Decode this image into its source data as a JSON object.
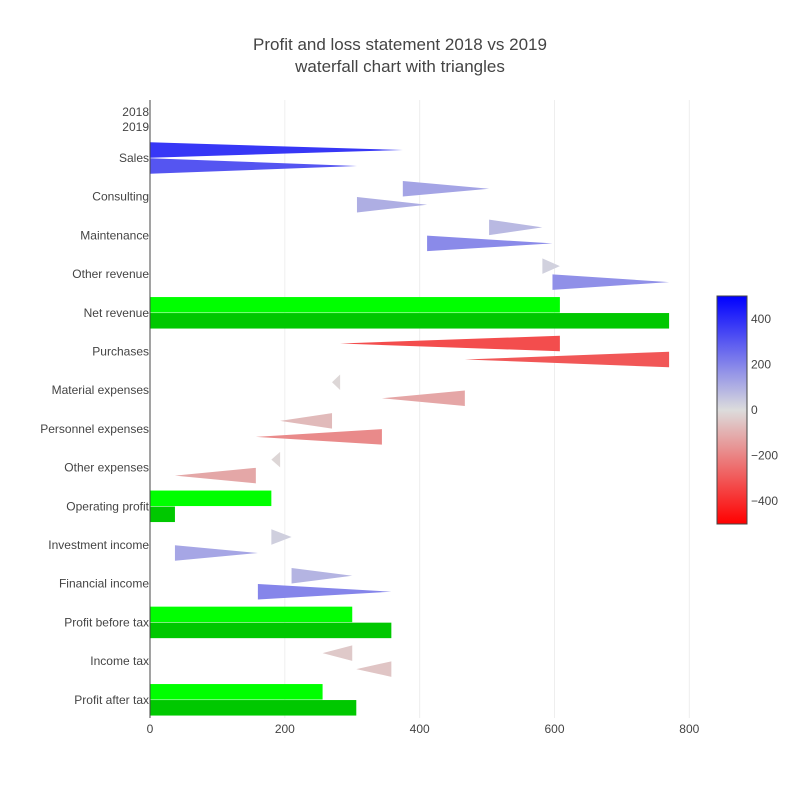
{
  "chart_data": {
    "type": "bar",
    "title_lines": [
      "Profit and loss statement 2018 vs 2019",
      "waterfall chart with triangles"
    ],
    "orientation": "horizontal",
    "x_ticks": [
      0,
      200,
      400,
      600,
      800
    ],
    "x_range": [
      0,
      890
    ],
    "top_labels": [
      "2018",
      "2019"
    ],
    "categories": [
      "Sales",
      "Consulting",
      "Maintenance",
      "Other revenue",
      "Net revenue",
      "Purchases",
      "Material expenses",
      "Personnel expenses",
      "Other expenses",
      "Operating profit",
      "Investment income",
      "Financial income",
      "Profit before tax",
      "Income tax",
      "Profit after tax"
    ],
    "series": [
      {
        "name": "2018",
        "items": [
          {
            "kind": "delta",
            "start": 0,
            "end": 375
          },
          {
            "kind": "delta",
            "start": 375,
            "end": 503
          },
          {
            "kind": "delta",
            "start": 503,
            "end": 582
          },
          {
            "kind": "delta",
            "start": 582,
            "end": 608
          },
          {
            "kind": "total",
            "value": 608
          },
          {
            "kind": "delta",
            "start": 608,
            "end": 282
          },
          {
            "kind": "delta",
            "start": 282,
            "end": 270
          },
          {
            "kind": "delta",
            "start": 270,
            "end": 193
          },
          {
            "kind": "delta",
            "start": 193,
            "end": 180
          },
          {
            "kind": "total",
            "value": 180
          },
          {
            "kind": "delta",
            "start": 180,
            "end": 210
          },
          {
            "kind": "delta",
            "start": 210,
            "end": 300
          },
          {
            "kind": "total",
            "value": 300
          },
          {
            "kind": "delta",
            "start": 300,
            "end": 256
          },
          {
            "kind": "total",
            "value": 256
          }
        ]
      },
      {
        "name": "2019",
        "items": [
          {
            "kind": "delta",
            "start": 0,
            "end": 307
          },
          {
            "kind": "delta",
            "start": 307,
            "end": 411
          },
          {
            "kind": "delta",
            "start": 411,
            "end": 597
          },
          {
            "kind": "delta",
            "start": 597,
            "end": 770
          },
          {
            "kind": "total",
            "value": 770
          },
          {
            "kind": "delta",
            "start": 770,
            "end": 467
          },
          {
            "kind": "delta",
            "start": 467,
            "end": 344
          },
          {
            "kind": "delta",
            "start": 344,
            "end": 157
          },
          {
            "kind": "delta",
            "start": 157,
            "end": 37
          },
          {
            "kind": "total",
            "value": 37
          },
          {
            "kind": "delta",
            "start": 37,
            "end": 160
          },
          {
            "kind": "delta",
            "start": 160,
            "end": 358
          },
          {
            "kind": "total",
            "value": 358
          },
          {
            "kind": "delta",
            "start": 358,
            "end": 306
          },
          {
            "kind": "total",
            "value": 306
          }
        ]
      }
    ],
    "total_colors": {
      "2018": "#00ff00",
      "2019": "#00c800"
    },
    "colorscale": {
      "min": -500,
      "max": 500,
      "stops": [
        [
          0,
          "#ff0000"
        ],
        [
          0.5,
          "#dcdcdc"
        ],
        [
          1,
          "#0000ff"
        ]
      ],
      "ticks": [
        400,
        200,
        0,
        -200,
        -400
      ],
      "tick_labels": [
        "400",
        "200",
        "0",
        "−200",
        "−400"
      ],
      "placement": "right"
    },
    "grid": true
  }
}
